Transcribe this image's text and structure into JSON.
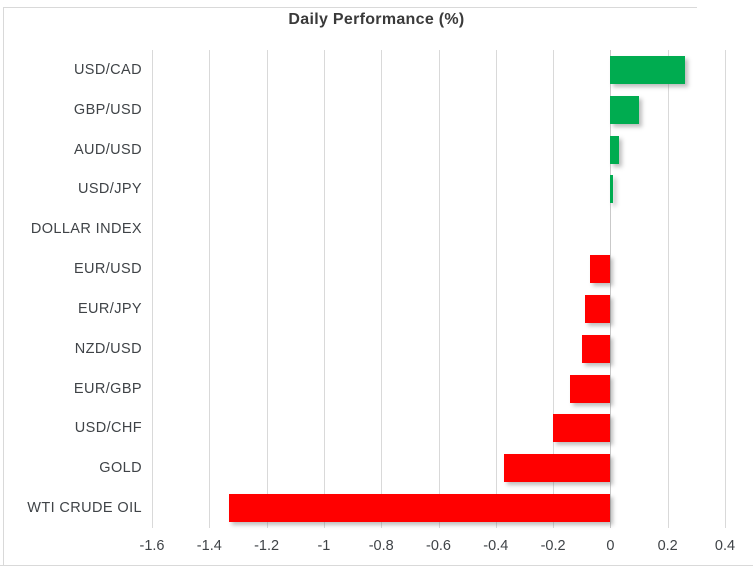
{
  "chart_data": {
    "type": "bar",
    "orientation": "horizontal",
    "title": "Daily Performance (%)",
    "categories": [
      "USD/CAD",
      "GBP/USD",
      "AUD/USD",
      "USD/JPY",
      "DOLLAR INDEX",
      "EUR/USD",
      "EUR/JPY",
      "NZD/USD",
      "EUR/GBP",
      "USD/CHF",
      "GOLD",
      "WTI CRUDE OIL"
    ],
    "values": [
      0.26,
      0.1,
      0.03,
      0.01,
      0.0,
      -0.07,
      -0.09,
      -0.1,
      -0.14,
      -0.2,
      -0.37,
      -1.33
    ],
    "xlabel": "",
    "ylabel": "",
    "xlim": [
      -1.6,
      0.4
    ],
    "xticks": [
      -1.6,
      -1.4,
      -1.2,
      -1.0,
      -0.8,
      -0.6,
      -0.4,
      -0.2,
      0,
      0.2,
      0.4
    ],
    "xtick_labels": [
      "-1.6",
      "-1.4",
      "-1.2",
      "-1",
      "-0.8",
      "-0.6",
      "-0.4",
      "-0.2",
      "0",
      "0.2",
      "0.4"
    ],
    "grid": "vertical-only",
    "legend": "none",
    "colors": {
      "positive": "#00AC50",
      "negative": "#FF0000",
      "gridline": "#D9D9D9",
      "zero_line": "#C9C9C9",
      "text": "#3F4347",
      "title_text": "#3A3A3A"
    }
  }
}
